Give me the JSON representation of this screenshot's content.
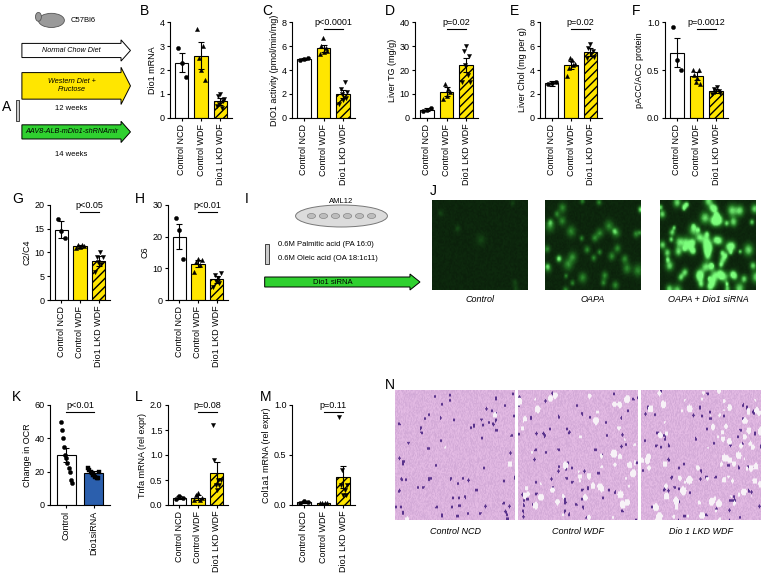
{
  "chart_data": [
    {
      "type": "bar",
      "panel": "B",
      "y_label": "Dio1 mRNA",
      "categories": [
        "Control NCD",
        "Control WDF",
        "Dio1 LKD WDF"
      ],
      "values": [
        2.3,
        2.6,
        0.7
      ],
      "errors": [
        0.4,
        0.55,
        0.15
      ],
      "points": [
        [
          2.9,
          2.3,
          1.7
        ],
        [
          3.7,
          2.5,
          2.0,
          3.0,
          1.6
        ],
        [
          0.5,
          0.9,
          0.6,
          1.0,
          0.4,
          0.7,
          0.8
        ]
      ],
      "colors": [
        "#ffffff",
        "#ffe600",
        "#ffe600"
      ],
      "ylim": [
        0,
        4
      ],
      "yticks": [
        0,
        1,
        2,
        3,
        4
      ]
    },
    {
      "type": "bar",
      "panel": "C",
      "y_label": "DIO1 activity (pmol/min/mg)",
      "categories": [
        "Control NCD",
        "Control WDF",
        "Dio1 LKD WDF"
      ],
      "values": [
        4.9,
        5.8,
        2.0
      ],
      "errors": [
        0.1,
        0.3,
        0.3
      ],
      "points": [
        [
          4.8,
          4.9,
          5.0
        ],
        [
          5.3,
          6.0,
          6.7,
          5.5,
          5.8,
          5.6
        ],
        [
          1.2,
          2.4,
          2.0,
          1.5,
          3.0,
          1.7,
          2.2
        ]
      ],
      "colors": [
        "#ffffff",
        "#ffe600",
        "#ffe600"
      ],
      "ylim": [
        0,
        8
      ],
      "yticks": [
        0,
        2,
        4,
        6,
        8
      ],
      "annotations": [
        {
          "text": "p<0.0001",
          "between": [
            "Control WDF",
            "Dio1 LKD WDF"
          ]
        }
      ]
    },
    {
      "type": "bar",
      "panel": "D",
      "y_label": "Liver TG (mg/g)",
      "categories": [
        "Control NCD",
        "Control WDF",
        "Dio1 LKD WDF"
      ],
      "values": [
        3.5,
        11,
        22
      ],
      "errors": [
        0.5,
        2,
        3
      ],
      "points": [
        [
          3.0,
          3.5,
          4.0
        ],
        [
          8,
          14,
          9,
          12,
          11
        ],
        [
          15,
          28,
          22,
          30,
          18,
          26,
          15
        ]
      ],
      "colors": [
        "#ffffff",
        "#ffe600",
        "#ffe600"
      ],
      "ylim": [
        0,
        40
      ],
      "yticks": [
        0,
        10,
        20,
        30,
        40
      ],
      "annotations": [
        {
          "text": "p=0.02",
          "between": [
            "Control WDF",
            "Dio1 LKD WDF"
          ]
        }
      ]
    },
    {
      "type": "bar",
      "panel": "E",
      "y_label": "Liver Chol (mg per g)",
      "categories": [
        "Control NCD",
        "Control WDF",
        "Dio1 LKD WDF"
      ],
      "values": [
        2.9,
        4.4,
        5.5
      ],
      "errors": [
        0.2,
        0.35,
        0.3
      ],
      "points": [
        [
          2.8,
          2.9,
          3.0
        ],
        [
          3.5,
          4.2,
          5.0,
          4.8,
          4.4,
          4.5
        ],
        [
          5.0,
          5.8,
          6.2,
          5.3,
          5.6,
          5.1
        ]
      ],
      "colors": [
        "#ffffff",
        "#ffe600",
        "#ffe600"
      ],
      "ylim": [
        0,
        8
      ],
      "yticks": [
        0,
        2,
        4,
        6,
        8
      ],
      "annotations": [
        {
          "text": "p=0.02",
          "between": [
            "Control WDF",
            "Dio1 LKD WDF"
          ]
        }
      ]
    },
    {
      "type": "bar",
      "panel": "F",
      "y_label": "pACC/ACC protein",
      "categories": [
        "Control NCD",
        "Control WDF",
        "Dio1 LKD WDF"
      ],
      "values": [
        0.68,
        0.44,
        0.28
      ],
      "errors": [
        0.15,
        0.04,
        0.02
      ],
      "points": [
        [
          0.95,
          0.6,
          0.5
        ],
        [
          0.5,
          0.45,
          0.38,
          0.42,
          0.5,
          0.35
        ],
        [
          0.25,
          0.3,
          0.27,
          0.32,
          0.28,
          0.26
        ]
      ],
      "colors": [
        "#ffffff",
        "#ffe600",
        "#ffe600"
      ],
      "ylim": [
        0,
        1.0
      ],
      "yticks": [
        {
          "value": 0,
          "label": "0.0"
        },
        {
          "value": 0.5,
          "label": "0.5"
        },
        {
          "value": 1.0,
          "label": "1.0"
        }
      ],
      "annotations": [
        {
          "text": "p=0.0012",
          "between": [
            "Control WDF",
            "Dio1 LKD WDF"
          ]
        }
      ]
    },
    {
      "type": "bar",
      "panel": "G",
      "y_label": "C2/C4",
      "categories": [
        "Control NCD",
        "Control WDF",
        "Dio1 LKD WDF"
      ],
      "values": [
        14.8,
        11.3,
        8.2
      ],
      "errors": [
        1.8,
        0.3,
        1.0
      ],
      "points": [
        [
          17,
          14.5,
          13
        ],
        [
          11,
          11.5,
          11.2,
          11.6,
          11.3
        ],
        [
          6,
          9,
          8,
          10,
          7.5,
          9
        ]
      ],
      "colors": [
        "#ffffff",
        "#ffe600",
        "#ffe600"
      ],
      "ylim": [
        0,
        20
      ],
      "yticks": [
        0,
        5,
        10,
        15,
        20
      ],
      "annotations": [
        {
          "text": "p<0.05",
          "between": [
            "Control WDF",
            "Dio1 LKD WDF"
          ]
        }
      ]
    },
    {
      "type": "bar",
      "panel": "H",
      "y_label": "C6",
      "categories": [
        "Control NCD",
        "Control WDF",
        "Dio1 LKD WDF"
      ],
      "values": [
        20,
        11.5,
        6.5
      ],
      "errors": [
        4,
        1,
        1
      ],
      "points": [
        [
          26,
          22,
          13
        ],
        [
          9,
          12,
          13,
          11,
          12.5
        ],
        [
          4,
          8,
          6,
          7,
          5.5,
          8.5
        ]
      ],
      "colors": [
        "#ffffff",
        "#ffe600",
        "#ffe600"
      ],
      "ylim": [
        0,
        30
      ],
      "yticks": [
        0,
        10,
        20,
        30
      ],
      "annotations": [
        {
          "text": "p<0.01",
          "between": [
            "Control WDF",
            "Dio1 LKD WDF"
          ]
        }
      ]
    },
    {
      "type": "bar",
      "panel": "K",
      "y_label": "Change in OCR",
      "categories": [
        "Control",
        "Dio1siRNA"
      ],
      "values": [
        30,
        19
      ],
      "errors": [
        4,
        1.5
      ],
      "points": [
        [
          50,
          45,
          40,
          35,
          30,
          28,
          25,
          22,
          20,
          15,
          13
        ],
        [
          22,
          21,
          20,
          19,
          18,
          18,
          17,
          16,
          16,
          20
        ]
      ],
      "colors": [
        "#ffffff",
        "#2b5fad"
      ],
      "ylim": [
        0,
        60
      ],
      "yticks": [
        0,
        20,
        40,
        60
      ],
      "annotations": [
        {
          "text": "p<0.01",
          "between": [
            "Control",
            "Dio1siRNA"
          ]
        }
      ]
    },
    {
      "type": "bar",
      "panel": "L",
      "y_label": "Tnfa mRNA (rel expr)",
      "categories": [
        "Control NCD",
        "Control WDF",
        "Dio1 LKD WDF"
      ],
      "values": [
        0.15,
        0.15,
        0.65
      ],
      "errors": [
        0.03,
        0.05,
        0.22
      ],
      "points": [
        [
          0.12,
          0.18,
          0.15
        ],
        [
          0.1,
          0.2,
          0.25,
          0.1,
          0.15
        ],
        [
          1.6,
          0.9,
          0.4,
          0.3,
          0.5,
          0.4,
          0.5
        ]
      ],
      "colors": [
        "#ffffff",
        "#ffe600",
        "#ffe600"
      ],
      "ylim": [
        0,
        2.0
      ],
      "yticks": [
        {
          "value": 0,
          "label": "0.0"
        },
        {
          "value": 0.5,
          "label": "0.5"
        },
        {
          "value": 1.0,
          "label": "1.0"
        },
        {
          "value": 1.5,
          "label": "1.5"
        },
        {
          "value": 2.0,
          "label": "2.0"
        }
      ],
      "annotations": [
        {
          "text": "p=0.08",
          "between": [
            "Control WDF",
            "Dio1 LKD WDF"
          ]
        }
      ]
    },
    {
      "type": "bar",
      "panel": "M",
      "y_label": "Col1a1 mRNA (rel expr)",
      "categories": [
        "Control NCD",
        "Control WDF",
        "Dio1 LKD WDF"
      ],
      "values": [
        0.03,
        0.02,
        0.28
      ],
      "errors": [
        0.01,
        0.005,
        0.11
      ],
      "points": [
        [
          0.02,
          0.04,
          0.03
        ],
        [
          0.02,
          0.02,
          0.02,
          0.02
        ],
        [
          0.88,
          0.2,
          0.35,
          0.1,
          0.15,
          0.1,
          0.2
        ]
      ],
      "colors": [
        "#ffffff",
        "#ffe600",
        "#ffe600"
      ],
      "ylim": [
        0,
        1.0
      ],
      "yticks": [
        {
          "value": 0,
          "label": "0.0"
        },
        {
          "value": 0.5,
          "label": "0.5"
        },
        {
          "value": 1.0,
          "label": "1.0"
        }
      ],
      "annotations": [
        {
          "text": "p=0.11",
          "between": [
            "Control WDF",
            "Dio1 LKD WDF"
          ]
        }
      ]
    }
  ],
  "diagram_A": {
    "panel": "A",
    "mouse": "C57Bl6",
    "arrows": [
      {
        "label": "Normal Chow Diet"
      },
      {
        "label": "Western Diet +\nFructose",
        "duration": "12 weeks"
      },
      {
        "label": "AAV8-ALB-mDio1-shRNAmir",
        "duration": "14 weeks"
      }
    ]
  },
  "diagram_I": {
    "panel": "I",
    "cell_line": "AML12",
    "treatments": [
      "0.6M Palmitic acid (PA 16:0)",
      "0.6M Oleic acid (OA 18:1c11)"
    ],
    "arrow": "Dio1 siRNA"
  },
  "images_J": {
    "panel": "J",
    "captions": [
      "Control",
      "OAPA",
      "OAPA + Dio1 siRNA"
    ]
  },
  "images_N": {
    "panel": "N",
    "captions": [
      "Control NCD",
      "Control WDF",
      "Dio 1 LKD WDF"
    ]
  }
}
